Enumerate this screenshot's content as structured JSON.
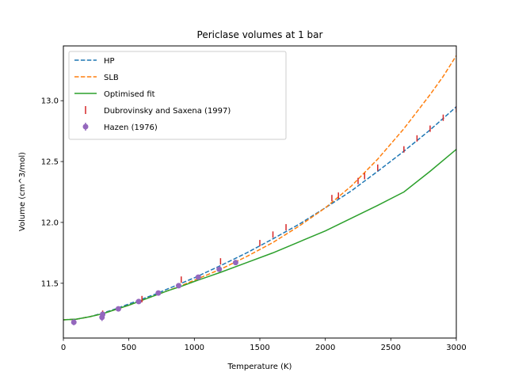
{
  "chart_data": {
    "type": "line",
    "title": "Periclase volumes at 1 bar",
    "xlabel": "Temperature (K)",
    "ylabel": "Volume (cm^3/mol)",
    "xlim": [
      0,
      3000
    ],
    "ylim": [
      11.05,
      13.45
    ],
    "xticks": [
      0,
      500,
      1000,
      1500,
      2000,
      2500,
      3000
    ],
    "yticks": [
      11.5,
      12.0,
      12.5,
      13.0
    ],
    "xtick_labels": [
      "0",
      "500",
      "1000",
      "1500",
      "2000",
      "2500",
      "3000"
    ],
    "ytick_labels": [
      "11.5",
      "12.0",
      "12.5",
      "13.0"
    ],
    "grid": false,
    "legend_position": "top-left",
    "series": [
      {
        "name": "HP",
        "style": "dashed",
        "color": "#1f77b4",
        "x": [
          0,
          100,
          200,
          300,
          400,
          500,
          600,
          700,
          800,
          900,
          1000,
          1200,
          1400,
          1600,
          1800,
          2000,
          2200,
          2400,
          2600,
          2800,
          3000
        ],
        "y": [
          11.2,
          11.205,
          11.225,
          11.255,
          11.29,
          11.33,
          11.37,
          11.41,
          11.455,
          11.5,
          11.545,
          11.645,
          11.75,
          11.865,
          11.985,
          12.12,
          12.26,
          12.42,
          12.585,
          12.76,
          12.95
        ]
      },
      {
        "name": "SLB",
        "style": "dashed",
        "color": "#ff7f0e",
        "x": [
          0,
          100,
          200,
          300,
          400,
          500,
          600,
          700,
          800,
          900,
          1000,
          1200,
          1400,
          1600,
          1800,
          2000,
          2200,
          2400,
          2600,
          2800,
          2900,
          3000
        ],
        "y": [
          11.2,
          11.205,
          11.225,
          11.25,
          11.285,
          11.32,
          11.36,
          11.4,
          11.44,
          11.48,
          11.525,
          11.615,
          11.72,
          11.835,
          11.97,
          12.12,
          12.3,
          12.52,
          12.77,
          13.05,
          13.2,
          13.37
        ]
      },
      {
        "name": "Optimised fit",
        "style": "solid",
        "color": "#2ca02c",
        "x": [
          0,
          100,
          200,
          300,
          400,
          500,
          600,
          700,
          800,
          900,
          1000,
          1200,
          1400,
          1600,
          1800,
          2000,
          2200,
          2400,
          2600,
          2800,
          3000
        ],
        "y": [
          11.2,
          11.205,
          11.225,
          11.25,
          11.285,
          11.32,
          11.36,
          11.4,
          11.44,
          11.475,
          11.515,
          11.59,
          11.67,
          11.75,
          11.84,
          11.93,
          12.035,
          12.14,
          12.25,
          12.42,
          12.6
        ]
      },
      {
        "name": "Dubrovinsky and Saxena (1997)",
        "style": "vline-markers",
        "color": "#d62728",
        "x": [
          300,
          600,
          900,
          1200,
          1500,
          1600,
          1700,
          2050,
          2100,
          2250,
          2300,
          2400,
          2600,
          2700,
          2800,
          2900,
          3000
        ],
        "y": [
          11.25,
          11.37,
          11.53,
          11.68,
          11.83,
          11.9,
          11.96,
          12.2,
          12.22,
          12.34,
          12.38,
          12.45,
          12.6,
          12.69,
          12.77,
          12.86,
          12.93
        ]
      },
      {
        "name": "Hazen (1976)",
        "style": "errorbar-points",
        "color": "#9467bd",
        "x": [
          80,
          295,
          300,
          420,
          575,
          725,
          880,
          1030,
          1190,
          1315
        ],
        "y": [
          11.18,
          11.22,
          11.245,
          11.29,
          11.35,
          11.42,
          11.48,
          11.55,
          11.615,
          11.67
        ],
        "yerr": [
          0.025,
          0.03,
          0.015,
          0.012,
          0.012,
          0.012,
          0.012,
          0.012,
          0.012,
          0.012
        ]
      }
    ]
  }
}
